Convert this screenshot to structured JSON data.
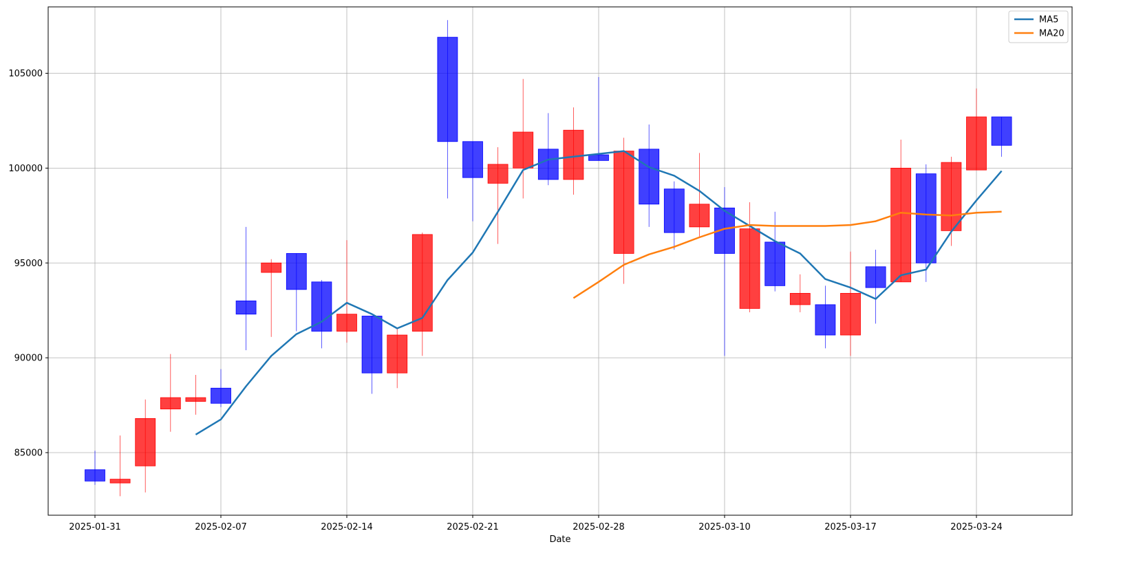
{
  "chart_data": {
    "type": "candlestick",
    "xlabel": "Date",
    "ylabel": "",
    "ylim": [
      81700,
      108500
    ],
    "yticks": [
      85000,
      90000,
      95000,
      100000,
      105000
    ],
    "grid": true,
    "legend_position": "top-right",
    "up_color": "#ff0000",
    "down_color": "#0000ff",
    "x_tick_labels": [
      {
        "index": 0,
        "label": "2025-01-31"
      },
      {
        "index": 5,
        "label": "2025-02-07"
      },
      {
        "index": 10,
        "label": "2025-02-14"
      },
      {
        "index": 15,
        "label": "2025-02-21"
      },
      {
        "index": 20,
        "label": "2025-02-28"
      },
      {
        "index": 25,
        "label": "2025-03-10"
      },
      {
        "index": 30,
        "label": "2025-03-17"
      },
      {
        "index": 35,
        "label": "2025-03-24"
      }
    ],
    "candles": [
      {
        "o": 84100,
        "h": 85100,
        "l": 83300,
        "c": 83500
      },
      {
        "o": 83400,
        "h": 85900,
        "l": 82700,
        "c": 83600
      },
      {
        "o": 84300,
        "h": 87800,
        "l": 82900,
        "c": 86800
      },
      {
        "o": 87300,
        "h": 90200,
        "l": 86100,
        "c": 87900
      },
      {
        "o": 87700,
        "h": 89100,
        "l": 87000,
        "c": 87900
      },
      {
        "o": 88400,
        "h": 89400,
        "l": 87400,
        "c": 87600
      },
      {
        "o": 93000,
        "h": 96900,
        "l": 90400,
        "c": 92300
      },
      {
        "o": 94500,
        "h": 95200,
        "l": 91100,
        "c": 95000
      },
      {
        "o": 95500,
        "h": 95500,
        "l": 91400,
        "c": 93600
      },
      {
        "o": 94000,
        "h": 94100,
        "l": 90500,
        "c": 91400
      },
      {
        "o": 91400,
        "h": 96200,
        "l": 90800,
        "c": 92300
      },
      {
        "o": 92200,
        "h": 92200,
        "l": 88100,
        "c": 89200
      },
      {
        "o": 89200,
        "h": 91600,
        "l": 88400,
        "c": 91200
      },
      {
        "o": 91400,
        "h": 96600,
        "l": 90100,
        "c": 96500
      },
      {
        "o": 106900,
        "h": 107800,
        "l": 98400,
        "c": 101400
      },
      {
        "o": 101400,
        "h": 101400,
        "l": 97200,
        "c": 99500
      },
      {
        "o": 99200,
        "h": 101100,
        "l": 96000,
        "c": 100200
      },
      {
        "o": 100000,
        "h": 104700,
        "l": 98400,
        "c": 101900
      },
      {
        "o": 101000,
        "h": 102900,
        "l": 99100,
        "c": 99400
      },
      {
        "o": 99400,
        "h": 103200,
        "l": 98600,
        "c": 102000
      },
      {
        "o": 100700,
        "h": 104800,
        "l": 100400,
        "c": 100400
      },
      {
        "o": 95500,
        "h": 101600,
        "l": 93900,
        "c": 100900
      },
      {
        "o": 101000,
        "h": 102300,
        "l": 96900,
        "c": 98100
      },
      {
        "o": 98900,
        "h": 99300,
        "l": 95700,
        "c": 96600
      },
      {
        "o": 96900,
        "h": 100800,
        "l": 96400,
        "c": 98100
      },
      {
        "o": 97900,
        "h": 99000,
        "l": 90100,
        "c": 95500
      },
      {
        "o": 92600,
        "h": 98200,
        "l": 92400,
        "c": 96800
      },
      {
        "o": 96100,
        "h": 97700,
        "l": 93500,
        "c": 93800
      },
      {
        "o": 92800,
        "h": 94400,
        "l": 92400,
        "c": 93400
      },
      {
        "o": 92800,
        "h": 93800,
        "l": 90500,
        "c": 91200
      },
      {
        "o": 91200,
        "h": 95600,
        "l": 90100,
        "c": 93400
      },
      {
        "o": 94800,
        "h": 95700,
        "l": 91800,
        "c": 93700
      },
      {
        "o": 94000,
        "h": 101500,
        "l": 94000,
        "c": 100000
      },
      {
        "o": 99700,
        "h": 100200,
        "l": 94000,
        "c": 95000
      },
      {
        "o": 96700,
        "h": 100600,
        "l": 95900,
        "c": 100300
      },
      {
        "o": 99900,
        "h": 104200,
        "l": 99900,
        "c": 102700
      },
      {
        "o": 102700,
        "h": 102700,
        "l": 100600,
        "c": 101200
      }
    ],
    "series": [
      {
        "name": "MA5",
        "color": "#1f77b4",
        "values": [
          null,
          null,
          null,
          null,
          85950,
          86750,
          88500,
          90100,
          91250,
          91900,
          92900,
          92300,
          91550,
          92100,
          94100,
          95550,
          97700,
          99900,
          100450,
          100600,
          100750,
          100900,
          100050,
          99600,
          98800,
          97750,
          96950,
          96150,
          95500,
          94150,
          93700,
          93100,
          94350,
          94650,
          96650,
          98300,
          99850
        ]
      },
      {
        "name": "MA20",
        "color": "#ff7f0e",
        "values": [
          null,
          null,
          null,
          null,
          null,
          null,
          null,
          null,
          null,
          null,
          null,
          null,
          null,
          null,
          null,
          null,
          null,
          null,
          null,
          93150,
          94000,
          94900,
          95450,
          95850,
          96350,
          96800,
          97000,
          96950,
          96950,
          96950,
          97000,
          97200,
          97650,
          97550,
          97500,
          97650,
          97700
        ]
      }
    ]
  }
}
